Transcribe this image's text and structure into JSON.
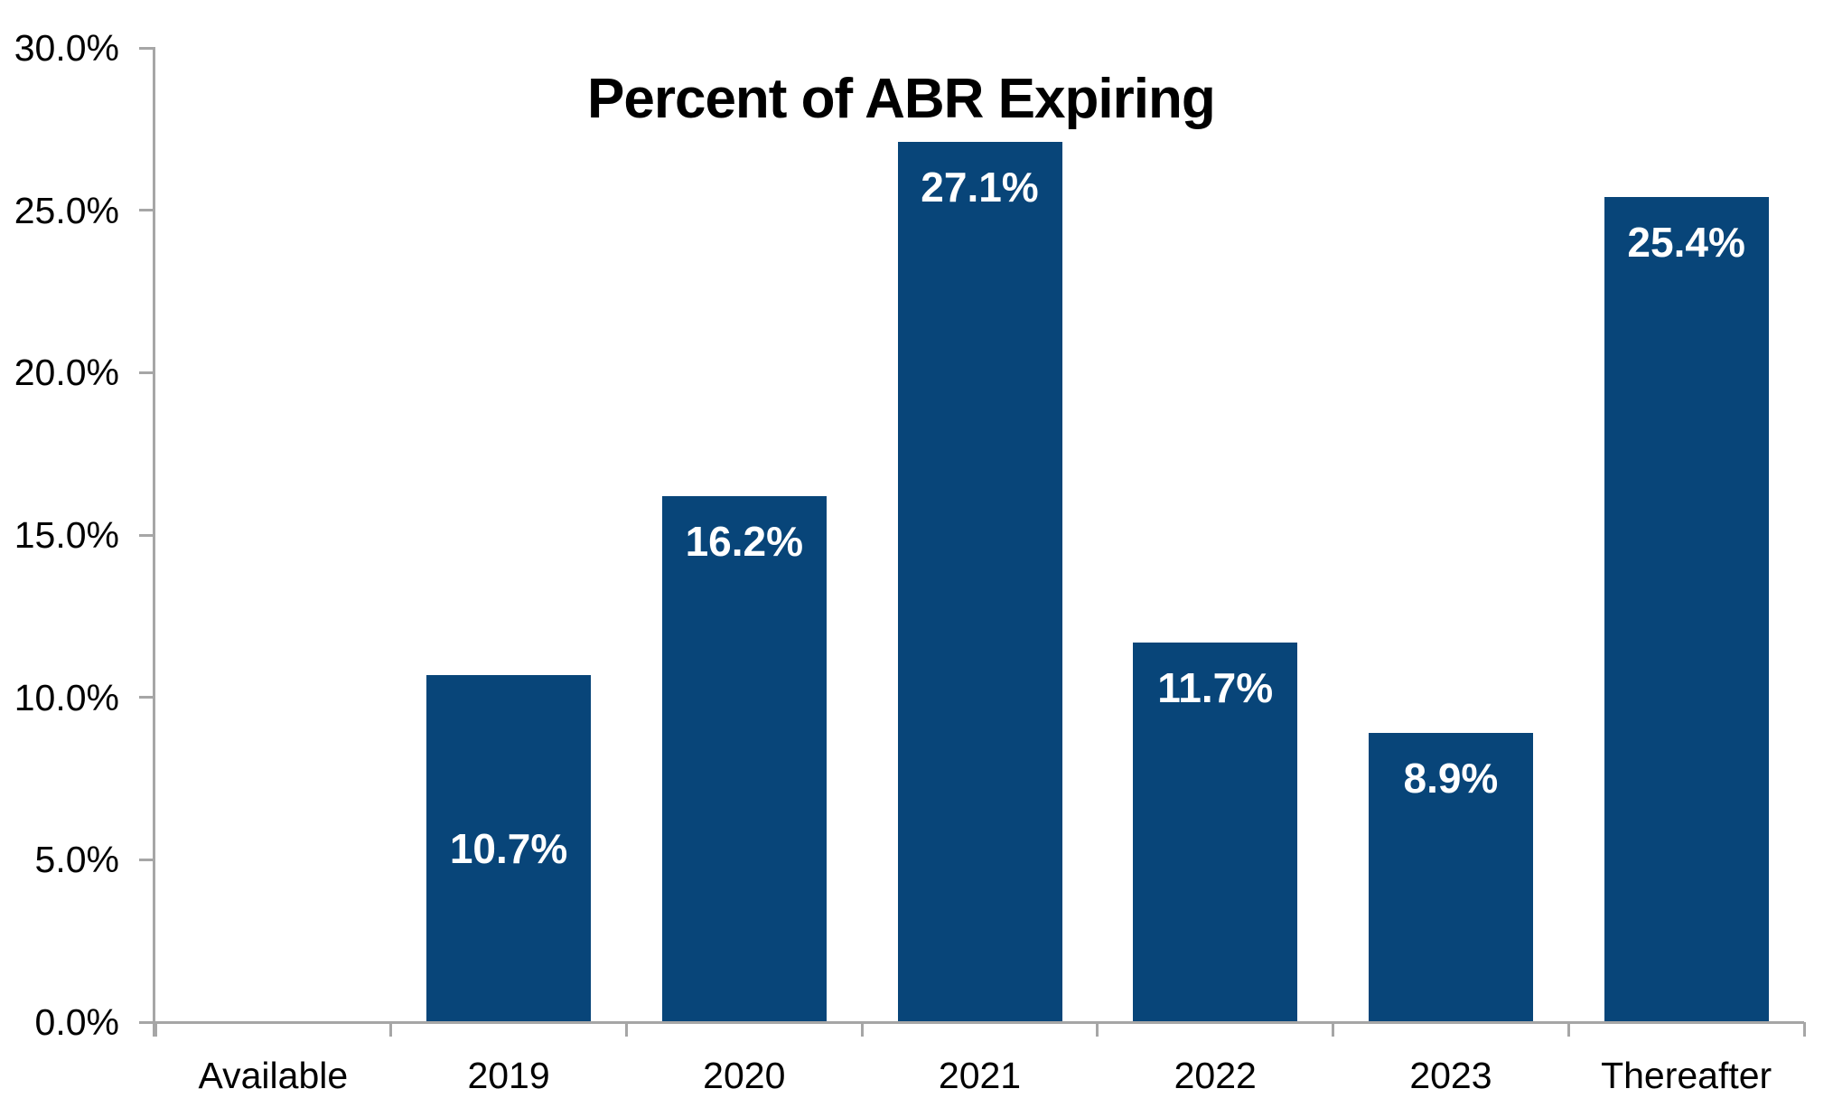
{
  "chart_data": {
    "type": "bar",
    "title": "Percent of ABR Expiring",
    "categories": [
      "Available",
      "2019",
      "2020",
      "2021",
      "2022",
      "2023",
      "Thereafter"
    ],
    "values": [
      0,
      10.7,
      16.2,
      27.1,
      11.7,
      8.9,
      25.4
    ],
    "data_labels": [
      "",
      "10.7%",
      "16.2%",
      "27.1%",
      "11.7%",
      "8.9%",
      "25.4%"
    ],
    "data_label_positions": [
      "none",
      "middle",
      "inside_end",
      "inside_end",
      "inside_end",
      "inside_end",
      "inside_end"
    ],
    "xlabel": "",
    "ylabel": "",
    "ylim": [
      0,
      30
    ],
    "ytick_interval": 5,
    "ytick_labels": [
      "0.0%",
      "5.0%",
      "10.0%",
      "15.0%",
      "20.0%",
      "25.0%",
      "30.0%"
    ],
    "grid": false,
    "legend": "none",
    "series_name": "Percent of ABR Expiring",
    "colors": {
      "bar": "#084579",
      "axis": "#A6A6A6",
      "data_label_text": "#FFFFFF",
      "axis_text": "#000000",
      "title_text": "#000000",
      "background": "#FFFFFF"
    }
  }
}
